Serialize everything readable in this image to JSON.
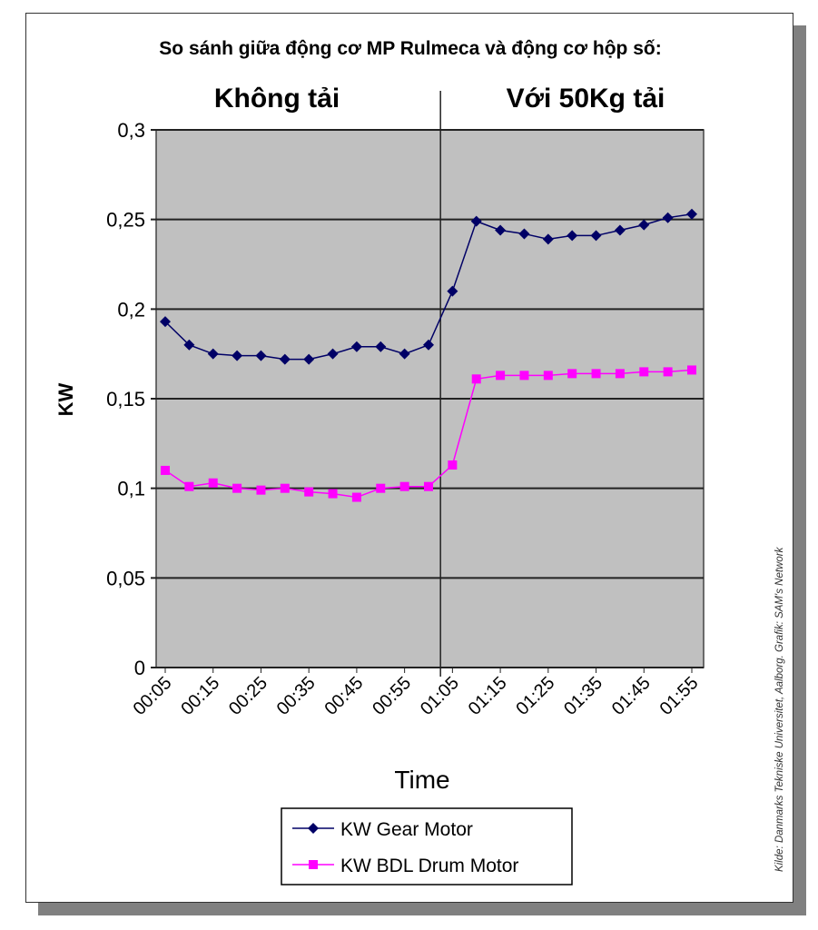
{
  "chart_data": {
    "type": "line",
    "title": "So sánh giữa động cơ MP Rulmeca và động cơ hộp số:",
    "section_labels": [
      "Không tải",
      "Với 50Kg tải"
    ],
    "xlabel": "Time",
    "ylabel": "KW",
    "ylim": [
      0,
      0.3
    ],
    "yticks": [
      "0",
      "0,05",
      "0,1",
      "0,15",
      "0,2",
      "0,25",
      "0,3"
    ],
    "xtick_labels": [
      "00:05",
      "00:15",
      "00:25",
      "00:35",
      "00:45",
      "00:55",
      "01:05",
      "01:15",
      "01:25",
      "01:35",
      "01:45",
      "01:55"
    ],
    "x": [
      "00:05",
      "00:10",
      "00:15",
      "00:20",
      "00:25",
      "00:30",
      "00:35",
      "00:40",
      "00:45",
      "00:50",
      "00:55",
      "01:00",
      "01:05",
      "01:10",
      "01:15",
      "01:20",
      "01:25",
      "01:30",
      "01:35",
      "01:40",
      "01:45",
      "01:50",
      "01:55"
    ],
    "grid": true,
    "legend": "bottom",
    "series": [
      {
        "name": "KW Gear Motor",
        "color": "#000066",
        "marker": "diamond",
        "values": [
          0.193,
          0.18,
          0.175,
          0.174,
          0.174,
          0.172,
          0.172,
          0.175,
          0.179,
          0.179,
          0.175,
          0.18,
          0.21,
          0.249,
          0.244,
          0.242,
          0.239,
          0.241,
          0.241,
          0.244,
          0.247,
          0.251,
          0.253
        ]
      },
      {
        "name": "KW BDL Drum Motor",
        "color": "#ff00ff",
        "marker": "square",
        "values": [
          0.11,
          0.101,
          0.103,
          0.1,
          0.099,
          0.1,
          0.098,
          0.097,
          0.095,
          0.1,
          0.101,
          0.101,
          0.113,
          0.161,
          0.163,
          0.163,
          0.163,
          0.164,
          0.164,
          0.164,
          0.165,
          0.165,
          0.166
        ]
      }
    ],
    "source": "Kilde: Danmarks Tekniske Universitet, Aalborg. Grafik: SAM's Network",
    "plot_background": "#c0c0c0"
  }
}
